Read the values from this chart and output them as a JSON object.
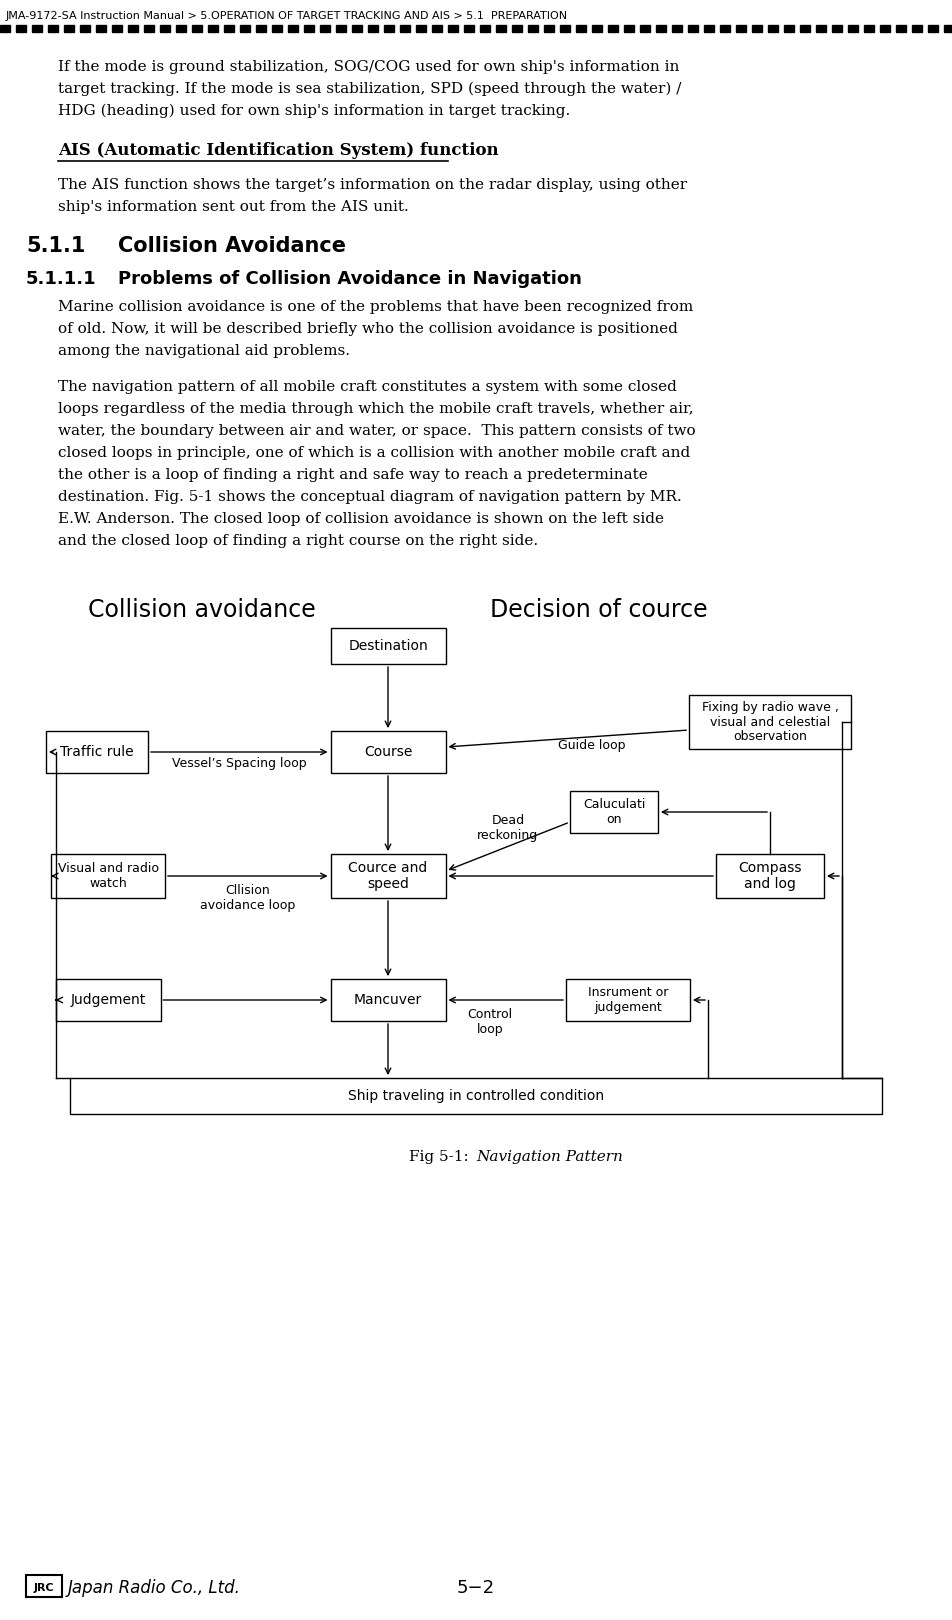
{
  "page_title": "JMA-9172-SA Instruction Manual > 5.OPERATION OF TARGET TRACKING AND AIS > 5.1  PREPARATION",
  "bg_color": "#ffffff",
  "para1_lines": [
    "If the mode is ground stabilization, SOG/COG used for own ship's information in",
    "target tracking. If the mode is sea stabilization, SPD (speed through the water) /",
    "HDG (heading) used for own ship's information in target tracking."
  ],
  "ais_heading": "AIS (Automatic Identification System) function",
  "ais_body_lines": [
    "The AIS function shows the target’s information on the radar display, using other",
    "ship's information sent out from the AIS unit."
  ],
  "section_511": "5.1.1",
  "section_511_title": "Collision Avoidance",
  "section_5111": "5.1.1.1",
  "section_5111_title": "Problems of Collision Avoidance in Navigation",
  "para2_lines": [
    "Marine collision avoidance is one of the problems that have been recognized from",
    "of old. Now, it will be described briefly who the collision avoidance is positioned",
    "among the navigational aid problems."
  ],
  "para3_lines": [
    "The navigation pattern of all mobile craft constitutes a system with some closed",
    "loops regardless of the media through which the mobile craft travels, whether air,",
    "water, the boundary between air and water, or space.  This pattern consists of two",
    "closed loops in principle, one of which is a collision with another mobile craft and",
    "the other is a loop of finding a right and safe way to reach a predeterminate",
    "destination. Fig. 5-1 shows the conceptual diagram of navigation pattern by MR.",
    "E.W. Anderson. The closed loop of collision avoidance is shown on the left side",
    "and the closed loop of finding a right course on the right side."
  ],
  "label_collision": "Collision avoidance",
  "label_decision": "Decision of cource",
  "box_destination": "Destination",
  "box_course": "Course",
  "box_traffic_rule": "Traffic rule",
  "box_fixing": "Fixing by radio wave ,\nvisual and celestial\nobservation",
  "box_cource_speed": "Cource and\nspeed",
  "box_calculation": "Caluculati\non",
  "box_compass": "Compass\nand log",
  "box_visual": "Visual and radio\nwatch",
  "box_mancuver": "Mancuver",
  "box_judgement": "Judgement",
  "box_insrument": "Insrument or\njudgement",
  "box_ship": "Ship traveling in controlled condition",
  "label_vessel_spacing": "Vessel’s Spacing loop",
  "label_guide": "Guide loop",
  "label_dead_reckoning": "Dead\nreckoning",
  "label_cllision_loop": "Cllision\navoidance loop",
  "label_control_loop": "Control\nloop",
  "fig_caption_normal": "Fig 5-1: ",
  "fig_caption_italic": "Navigation Pattern",
  "page_number": "5−2"
}
